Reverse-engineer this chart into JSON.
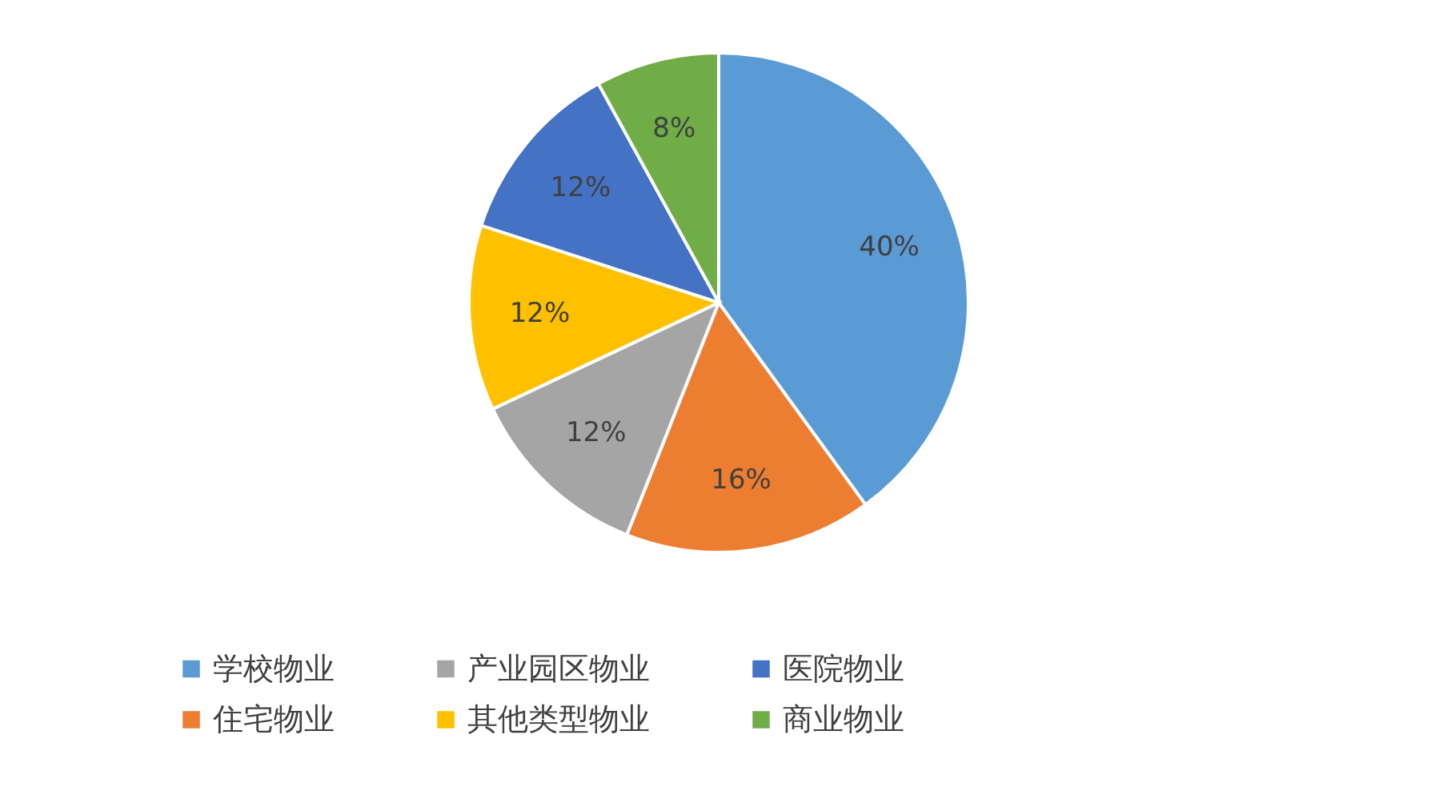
{
  "chart_data": {
    "type": "pie",
    "categories": [
      "学校物业",
      "住宅物业",
      "产业园区物业",
      "其他类型物业",
      "医院物业",
      "商业物业"
    ],
    "values": [
      40,
      16,
      12,
      12,
      12,
      8
    ],
    "colors": [
      "#5b9bd5",
      "#ed7d31",
      "#a5a5a5",
      "#ffc000",
      "#4472c4",
      "#70ad47"
    ],
    "value_labels": [
      "40%",
      "16%",
      "12%",
      "12%",
      "12%",
      "8%"
    ],
    "legend": "bottom"
  }
}
